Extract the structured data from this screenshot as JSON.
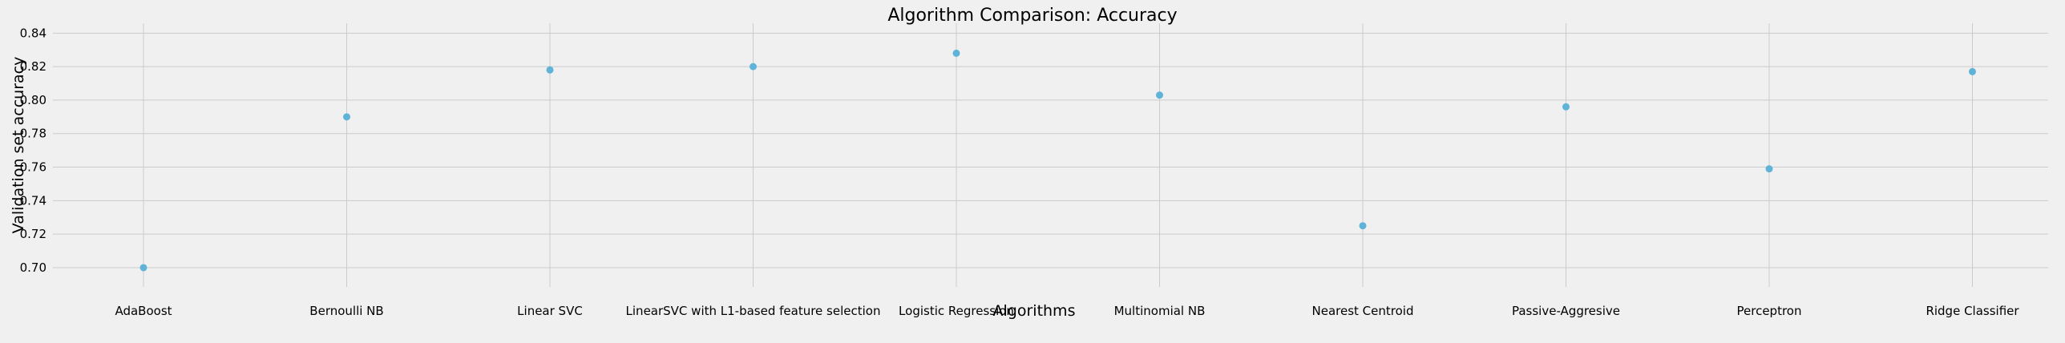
{
  "chart_data": {
    "type": "scatter",
    "title": "Algorithm Comparison: Accuracy",
    "xlabel": "Algorithms",
    "ylabel": "Validation set accuracy",
    "categories": [
      "AdaBoost",
      "Bernoulli NB",
      "Linear SVC",
      "LinearSVC with L1-based feature selection",
      "Logistic Regression",
      "Multinomial NB",
      "Nearest Centroid",
      "Passive-Aggresive",
      "Perceptron",
      "Ridge Classifier"
    ],
    "series": [
      {
        "values": [
          0.7,
          0.79,
          0.818,
          0.82,
          0.828,
          0.803,
          0.725,
          0.796,
          0.759,
          0.817
        ]
      }
    ],
    "yticks": [
      "0.70",
      "0.72",
      "0.74",
      "0.76",
      "0.78",
      "0.80",
      "0.82",
      "0.84"
    ],
    "ylim": [
      0.6885,
      0.8435
    ],
    "grid": true,
    "colors": {
      "point": "#5fb3d9",
      "background": "#f0f0f0",
      "grid": "#cbcbcb"
    }
  }
}
